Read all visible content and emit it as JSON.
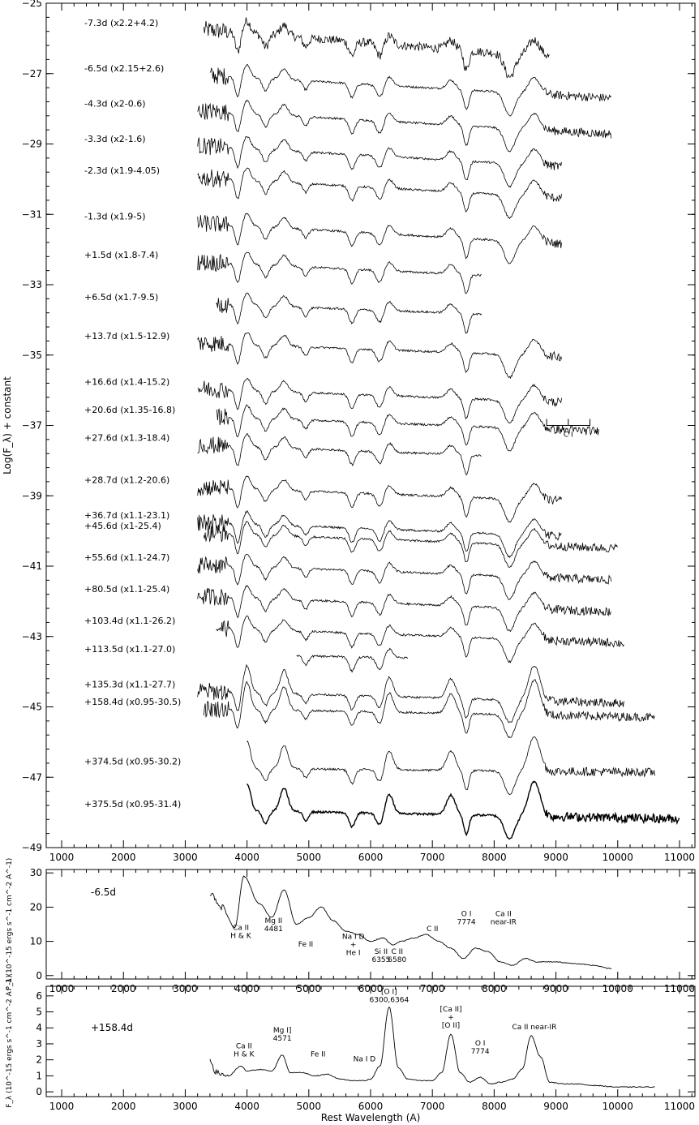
{
  "chart_data": [
    {
      "type": "line",
      "title": "",
      "xlabel": "",
      "ylabel": "Log(F_λ) + constant",
      "xlim": [
        750,
        11250
      ],
      "ylim": [
        -49,
        -25
      ],
      "x_ticks": [
        "1000",
        "2000",
        "3000",
        "4000",
        "5000",
        "6000",
        "7000",
        "8000",
        "9000",
        "10000",
        "11000"
      ],
      "y_ticks": [
        "-25",
        "-27",
        "-29",
        "-31",
        "-33",
        "-35",
        "-37",
        "-39",
        "-41",
        "-43",
        "-45",
        "-47",
        "-49"
      ],
      "grid": false,
      "series": [
        {
          "name": "-7.3d  (x2.2+4.2)",
          "label_y": -25.55,
          "x_start": 3300,
          "x_end": 8900,
          "level": -25.75,
          "slope": -0.42
        },
        {
          "name": "-6.5d (x2.15+2.6)",
          "label_y": -26.85,
          "x_start": 3400,
          "x_end": 9900,
          "level": -27.05,
          "slope": -0.3
        },
        {
          "name": "-4.3d (x2-0.6)",
          "label_y": -27.85,
          "x_start": 3200,
          "x_end": 9900,
          "level": -28.05,
          "slope": -0.3
        },
        {
          "name": "-3.3d (x2-1.6)",
          "label_y": -28.85,
          "x_start": 3200,
          "x_end": 9100,
          "level": -29.05,
          "slope": -0.3
        },
        {
          "name": "-2.3d (x1.9-4.05)",
          "label_y": -29.75,
          "x_start": 3200,
          "x_end": 9100,
          "level": -29.95,
          "slope": -0.3
        },
        {
          "name": "-1.3d (x1.9-5)",
          "label_y": -31.05,
          "x_start": 3200,
          "x_end": 9100,
          "level": -31.25,
          "slope": -0.3
        },
        {
          "name": "+1.5d (x1.8-7.4)",
          "label_y": -32.15,
          "x_start": 3200,
          "x_end": 7800,
          "level": -32.35,
          "slope": -0.25
        },
        {
          "name": "+6.5d (x1.7-9.5)",
          "label_y": -33.35,
          "x_start": 3500,
          "x_end": 7800,
          "level": -33.55,
          "slope": -0.2
        },
        {
          "name": "+13.7d (x1.5-12.9)",
          "label_y": -34.45,
          "x_start": 3200,
          "x_end": 9100,
          "level": -34.65,
          "slope": -0.2
        },
        {
          "name": "+16.6d (x1.4-15.2)",
          "label_y": -35.75,
          "x_start": 3200,
          "x_end": 9100,
          "level": -35.95,
          "slope": -0.2
        },
        {
          "name": "+20.6d (x1.35-16.8)",
          "label_y": -36.55,
          "x_start": 3500,
          "x_end": 9700,
          "level": -36.75,
          "slope": -0.2
        },
        {
          "name": "+27.6d (x1.3-18.4)",
          "label_y": -37.35,
          "x_start": 3200,
          "x_end": 7800,
          "level": -37.55,
          "slope": -0.2
        },
        {
          "name": "+28.7d (x1.2-20.6)",
          "label_y": -38.55,
          "x_start": 3200,
          "x_end": 9100,
          "level": -38.75,
          "slope": -0.2
        },
        {
          "name": "+36.7d (x1.1-23.1)",
          "label_y": -39.55,
          "x_start": 3200,
          "x_end": 9100,
          "level": -39.75,
          "slope": -0.2
        },
        {
          "name": "+45.6d (x1-25.4)",
          "label_y": -39.85,
          "x_start": 3300,
          "x_end": 10000,
          "level": -40.05,
          "slope": -0.2
        },
        {
          "name": "+55.6d (x1.1-24.7)",
          "label_y": -40.75,
          "x_start": 3200,
          "x_end": 9900,
          "level": -40.95,
          "slope": -0.2
        },
        {
          "name": "+80.5d (x1.1-25.4)",
          "label_y": -41.65,
          "x_start": 3200,
          "x_end": 9900,
          "level": -41.85,
          "slope": -0.2
        },
        {
          "name": "+103.4d (x1.1-26.2)",
          "label_y": -42.55,
          "x_start": 3500,
          "x_end": 10100,
          "level": -42.75,
          "slope": -0.2
        },
        {
          "name": "+113.5d (x1.1-27.0)",
          "label_y": -43.35,
          "x_start": 4800,
          "x_end": 6600,
          "level": -43.55,
          "slope": -0.1
        },
        {
          "name": "+135.3d (x1.1-27.7)",
          "label_y": -44.35,
          "x_start": 3200,
          "x_end": 10100,
          "level": -44.55,
          "slope": -0.15
        },
        {
          "name": "+158.4d (x0.95-30.5)",
          "label_y": -44.85,
          "x_start": 3300,
          "x_end": 10600,
          "level": -45.05,
          "slope": -0.1
        },
        {
          "name": "+374.5d (x0.95-30.2)",
          "label_y": -46.55,
          "x_start": 4000,
          "x_end": 10600,
          "level": -46.75,
          "slope": -0.05
        },
        {
          "name": "+375.5d (x0.95-31.4)",
          "label_y": -47.75,
          "x_start": 4000,
          "x_end": 11000,
          "level": -47.95,
          "slope": -0.1
        }
      ],
      "annotations": [
        {
          "text": "C I",
          "x": 9200,
          "y": -37.0
        }
      ]
    },
    {
      "type": "line",
      "title": "",
      "xlabel": "",
      "ylabel": "F_λ (10^-15 ergs s^-1 cm^-2 A^-1)",
      "xlim": [
        750,
        11250
      ],
      "ylim": [
        -1,
        31
      ],
      "x_ticks": [
        "1000",
        "2000",
        "3000",
        "4000",
        "5000",
        "6000",
        "7000",
        "8000",
        "9000",
        "10000",
        "11000"
      ],
      "y_ticks": [
        "0",
        "10",
        "20",
        "30"
      ],
      "grid": false,
      "series": [
        {
          "name": "-6.5d",
          "x": [
            3400,
            3600,
            3800,
            3950,
            4200,
            4400,
            4600,
            4800,
            5000,
            5200,
            5400,
            5600,
            5800,
            6000,
            6200,
            6355,
            6500,
            6700,
            6900,
            7100,
            7300,
            7500,
            7700,
            7900,
            8100,
            8300,
            8500,
            8700,
            9000,
            9300,
            9600,
            9900
          ],
          "y": [
            24,
            20,
            14,
            29,
            21,
            17,
            25,
            15,
            17,
            20,
            16,
            13,
            12,
            10,
            11,
            9,
            10,
            11,
            12,
            10,
            8,
            5,
            8,
            7,
            4,
            3,
            5,
            4,
            4,
            3.5,
            3,
            2
          ]
        }
      ],
      "annotations": [
        {
          "line1": "Ca II",
          "line2": "H & K",
          "x": 3900,
          "y": 11
        },
        {
          "line1": "Mg II",
          "line2": "4481",
          "x": 4430,
          "y": 13
        },
        {
          "line1": "Fe II",
          "x": 4950,
          "y": 8.5
        },
        {
          "line1": "Na I D",
          "line2": "+",
          "line3": "He I",
          "x": 5720,
          "y": 6
        },
        {
          "line1": "Si II",
          "line2": "6355",
          "x": 6170,
          "y": 4
        },
        {
          "line1": "C II",
          "line2": "6580",
          "x": 6430,
          "y": 4
        },
        {
          "line1": "C II",
          "x": 7000,
          "y": 13
        },
        {
          "line1": "O I",
          "line2": "7774",
          "x": 7550,
          "y": 15
        },
        {
          "line1": "Ca II",
          "line2": "near-IR",
          "x": 8150,
          "y": 15
        }
      ],
      "panel_label": "-6.5d"
    },
    {
      "type": "line",
      "title": "",
      "xlabel": "Rest Wavelength (A)",
      "ylabel": "F_λ (10^-15 ergs s^-1 cm^-2 A^-1)",
      "xlim": [
        750,
        11250
      ],
      "ylim": [
        -0.3,
        6.6
      ],
      "x_ticks": [
        "1000",
        "2000",
        "3000",
        "4000",
        "5000",
        "6000",
        "7000",
        "8000",
        "9000",
        "10000",
        "11000"
      ],
      "y_ticks": [
        "0",
        "1",
        "2",
        "3",
        "4",
        "5",
        "6"
      ],
      "grid": false,
      "series": [
        {
          "name": "+158.4d",
          "x": [
            3400,
            3500,
            3700,
            3900,
            4000,
            4200,
            4400,
            4571,
            4700,
            4900,
            5100,
            5300,
            5500,
            5700,
            5900,
            6000,
            6150,
            6300,
            6450,
            6600,
            6800,
            7000,
            7150,
            7300,
            7450,
            7600,
            7774,
            7950,
            8100,
            8300,
            8450,
            8600,
            8750,
            8900,
            9100,
            9300,
            9600,
            10000,
            10300,
            10600
          ],
          "y": [
            2.0,
            1.2,
            1.0,
            1.6,
            1.3,
            1.4,
            1.3,
            2.3,
            1.2,
            1.2,
            1.0,
            1.1,
            0.8,
            0.7,
            0.7,
            0.8,
            1.6,
            5.3,
            1.5,
            0.8,
            0.7,
            0.7,
            1.2,
            3.6,
            1.2,
            0.6,
            0.9,
            0.5,
            0.6,
            0.8,
            1.4,
            3.5,
            2.2,
            0.6,
            0.5,
            0.5,
            0.4,
            0.3,
            0.3,
            0.3
          ]
        }
      ],
      "annotations": [
        {
          "line1": "Ca II",
          "line2": "H & K",
          "x": 3950,
          "y": 2.2
        },
        {
          "line1": "Mg I]",
          "line2": "4571",
          "x": 4571,
          "y": 3.2
        },
        {
          "line1": "Fe II",
          "x": 5150,
          "y": 2.2
        },
        {
          "line1": "Na I D",
          "x": 5900,
          "y": 1.9
        },
        {
          "line1": "[O I]",
          "line2": "6300,6364",
          "x": 6300,
          "y": 5.6
        },
        {
          "line1": "[Ca II]",
          "line2": "+",
          "line3": "[O II]",
          "x": 7300,
          "y": 4.0
        },
        {
          "line1": "O I",
          "line2": "7774",
          "x": 7774,
          "y": 2.4
        },
        {
          "line1": "Ca II near-IR",
          "x": 8650,
          "y": 3.9
        }
      ],
      "panel_label": "+158.4d"
    }
  ]
}
